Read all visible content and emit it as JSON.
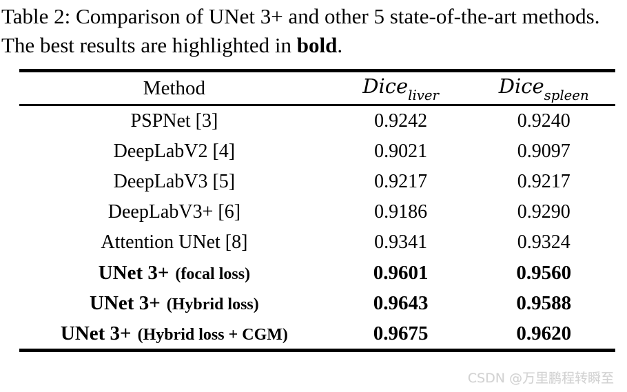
{
  "caption": {
    "text_before_bold": "Table 2: Comparison of UNet 3+ and other 5 state-of-the-art methods. The best results are highlighted in ",
    "bold_word": "bold",
    "text_after_bold": "."
  },
  "table": {
    "columns": [
      {
        "label": "Method"
      },
      {
        "main": "Dice",
        "sub": "liver"
      },
      {
        "main": "Dice",
        "sub": "spleen"
      }
    ],
    "rows": [
      {
        "method": "PSPNet [3]",
        "note": "",
        "dice_liver": "0.9242",
        "dice_spleen": "0.9240",
        "best": false
      },
      {
        "method": "DeepLabV2 [4]",
        "note": "",
        "dice_liver": "0.9021",
        "dice_spleen": "0.9097",
        "best": false
      },
      {
        "method": "DeepLabV3 [5]",
        "note": "",
        "dice_liver": "0.9217",
        "dice_spleen": "0.9217",
        "best": false
      },
      {
        "method": "DeepLabV3+ [6]",
        "note": "",
        "dice_liver": "0.9186",
        "dice_spleen": "0.9290",
        "best": false
      },
      {
        "method": "Attention UNet [8]",
        "note": "",
        "dice_liver": "0.9341",
        "dice_spleen": "0.9324",
        "best": false
      },
      {
        "method": "UNet 3+",
        "note": "(focal loss)",
        "dice_liver": "0.9601",
        "dice_spleen": "0.9560",
        "best": true
      },
      {
        "method": "UNet 3+",
        "note": "(Hybrid loss)",
        "dice_liver": "0.9643",
        "dice_spleen": "0.9588",
        "best": true
      },
      {
        "method": "UNet 3+",
        "note": "(Hybrid loss + CGM)",
        "dice_liver": "0.9675",
        "dice_spleen": "0.9620",
        "best": true
      }
    ]
  },
  "watermark": {
    "text": "CSDN @万里鹏程转瞬至",
    "color": "#d2d2d2"
  },
  "colors": {
    "text": "#000000",
    "background": "#ffffff",
    "rule": "#000000"
  }
}
